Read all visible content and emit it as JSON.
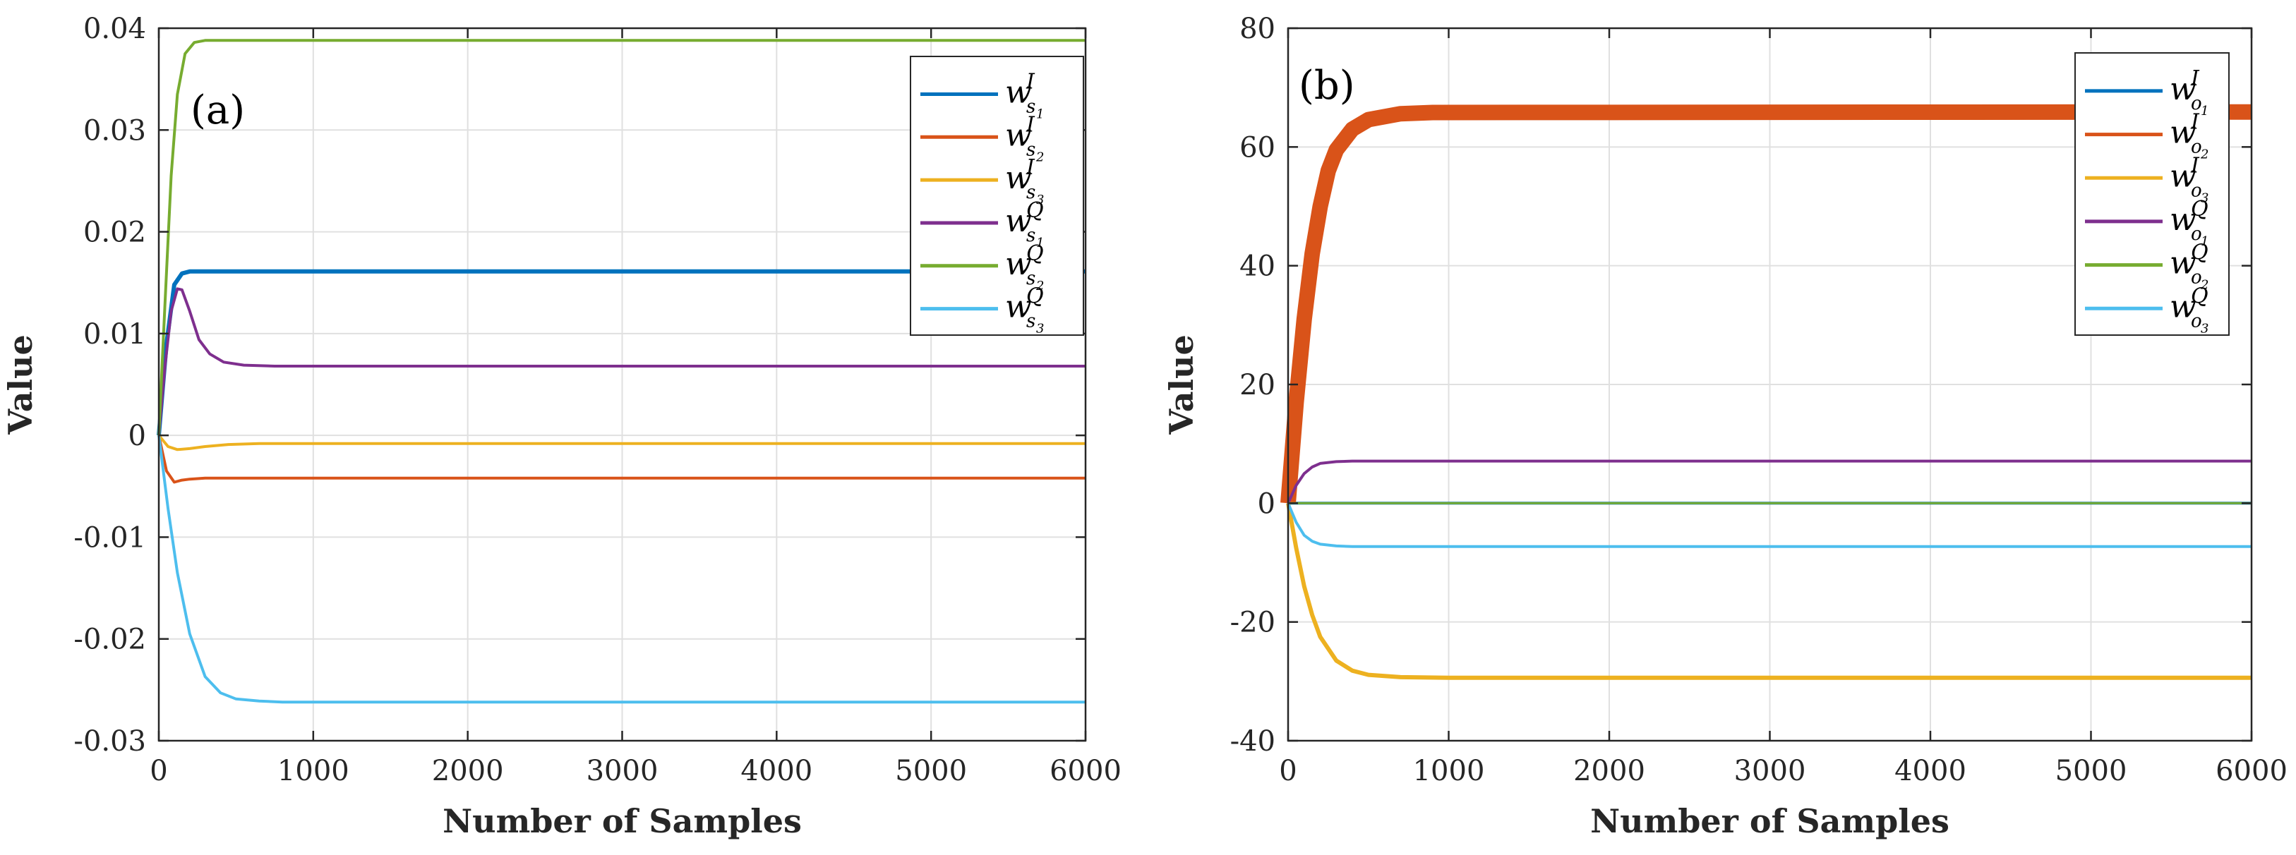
{
  "chart_data": [
    {
      "type": "line",
      "panel_label": "(a)",
      "xlabel": "Number of Samples",
      "ylabel": "Value",
      "xlim": [
        0,
        6000
      ],
      "ylim": [
        -0.03,
        0.04
      ],
      "xticks": [
        0,
        1000,
        2000,
        3000,
        4000,
        5000,
        6000
      ],
      "xtick_labels": [
        "0",
        "1000",
        "2000",
        "3000",
        "4000",
        "5000",
        "6000"
      ],
      "yticks": [
        -0.03,
        -0.02,
        -0.01,
        0,
        0.01,
        0.02,
        0.03,
        0.04
      ],
      "ytick_labels": [
        "-0.03",
        "-0.02",
        "-0.01",
        "0",
        "0.01",
        "0.02",
        "0.03",
        "0.04"
      ],
      "grid": true,
      "legend_position": "top-right",
      "series": [
        {
          "name": "w_{s1}^I",
          "w": "w",
          "sup": "I",
          "sub": "s",
          "subsub": "1",
          "color": "#0072BD",
          "width": 6,
          "x": [
            0,
            50,
            100,
            150,
            200,
            300,
            400,
            600,
            6000
          ],
          "values": [
            0,
            0.009,
            0.0148,
            0.0159,
            0.0161,
            0.0161,
            0.0161,
            0.0161,
            0.0161
          ]
        },
        {
          "name": "w_{s2}^I",
          "w": "w",
          "sup": "I",
          "sub": "s",
          "subsub": "2",
          "color": "#D95319",
          "width": 4,
          "x": [
            0,
            50,
            100,
            150,
            200,
            300,
            500,
            6000
          ],
          "values": [
            0,
            -0.0035,
            -0.0046,
            -0.0044,
            -0.0043,
            -0.0042,
            -0.0042,
            -0.0042
          ]
        },
        {
          "name": "w_{s3}^I",
          "w": "w",
          "sup": "I",
          "sub": "s",
          "subsub": "3",
          "color": "#EDB120",
          "width": 4,
          "x": [
            0,
            60,
            120,
            200,
            300,
            450,
            650,
            1000,
            6000
          ],
          "values": [
            0,
            -0.0011,
            -0.0014,
            -0.0013,
            -0.0011,
            -0.0009,
            -0.0008,
            -0.0008,
            -0.0008
          ]
        },
        {
          "name": "w_{s1}^Q",
          "w": "w",
          "sup": "Q",
          "sub": "s",
          "subsub": "1",
          "color": "#7E2F8E",
          "width": 4,
          "x": [
            0,
            40,
            80,
            120,
            150,
            200,
            260,
            330,
            420,
            550,
            750,
            1000,
            6000
          ],
          "values": [
            0,
            0.0068,
            0.0122,
            0.0144,
            0.0143,
            0.0122,
            0.0094,
            0.008,
            0.0072,
            0.0069,
            0.0068,
            0.0068,
            0.0068
          ]
        },
        {
          "name": "w_{s2}^Q",
          "w": "w",
          "sup": "Q",
          "sub": "s",
          "subsub": "2",
          "color": "#77AC30",
          "width": 4,
          "x": [
            0,
            40,
            80,
            120,
            170,
            230,
            300,
            600,
            6000
          ],
          "values": [
            0,
            0.013,
            0.0255,
            0.0335,
            0.0375,
            0.0386,
            0.0388,
            0.0388,
            0.0388
          ]
        },
        {
          "name": "w_{s3}^Q",
          "w": "w",
          "sup": "Q",
          "sub": "s",
          "subsub": "3",
          "color": "#4DBEEE",
          "width": 4,
          "x": [
            0,
            60,
            120,
            200,
            300,
            400,
            500,
            650,
            800,
            1000,
            6000
          ],
          "values": [
            0,
            -0.0072,
            -0.0135,
            -0.0195,
            -0.0237,
            -0.0253,
            -0.0259,
            -0.0261,
            -0.0262,
            -0.0262,
            -0.0262
          ]
        }
      ]
    },
    {
      "type": "line",
      "panel_label": "(b)",
      "xlabel": "Number of Samples",
      "ylabel": "Value",
      "xlim": [
        0,
        6000
      ],
      "ylim": [
        -40,
        80
      ],
      "xticks": [
        0,
        1000,
        2000,
        3000,
        4000,
        5000,
        6000
      ],
      "xtick_labels": [
        "0",
        "1000",
        "2000",
        "3000",
        "4000",
        "5000",
        "6000"
      ],
      "yticks": [
        -40,
        -20,
        0,
        20,
        40,
        60,
        80
      ],
      "ytick_labels": [
        "-40",
        "-20",
        "0",
        "20",
        "40",
        "60",
        "80"
      ],
      "grid": true,
      "legend_position": "top-right",
      "series": [
        {
          "name": "w_{o1}^I",
          "w": "w",
          "sup": "I",
          "sub": "o",
          "subsub": "1",
          "color": "#0072BD",
          "width": 4,
          "x": [
            0,
            6000
          ],
          "values": [
            0,
            0
          ]
        },
        {
          "name": "w_{o2}^I",
          "w": "w",
          "sup": "I",
          "sub": "o",
          "subsub": "2",
          "color": "#D95319",
          "width": 22,
          "x": [
            0,
            50,
            100,
            150,
            200,
            250,
            300,
            400,
            500,
            700,
            900,
            6000
          ],
          "values": [
            0,
            17,
            31,
            42,
            50,
            56,
            59.5,
            63,
            64.6,
            65.6,
            65.8,
            65.9
          ]
        },
        {
          "name": "w_{o3}^I",
          "w": "w",
          "sup": "I",
          "sub": "o",
          "subsub": "3",
          "color": "#EDB120",
          "width": 6,
          "x": [
            0,
            50,
            100,
            150,
            200,
            300,
            400,
            500,
            700,
            1000,
            6000
          ],
          "values": [
            0,
            -7.5,
            -14,
            -18.8,
            -22.5,
            -26.5,
            -28.2,
            -28.9,
            -29.3,
            -29.4,
            -29.4
          ]
        },
        {
          "name": "w_{o1}^Q",
          "w": "w",
          "sup": "Q",
          "sub": "o",
          "subsub": "1",
          "color": "#7E2F8E",
          "width": 4,
          "x": [
            0,
            50,
            100,
            150,
            200,
            300,
            400,
            600,
            6000
          ],
          "values": [
            0,
            3.0,
            5.0,
            6.1,
            6.7,
            7.0,
            7.1,
            7.1,
            7.1
          ]
        },
        {
          "name": "w_{o2}^Q",
          "w": "w",
          "sup": "Q",
          "sub": "o",
          "subsub": "2",
          "color": "#77AC30",
          "width": 3,
          "x": [
            0,
            6000
          ],
          "values": [
            0,
            0
          ]
        },
        {
          "name": "w_{o3}^Q",
          "w": "w",
          "sup": "Q",
          "sub": "o",
          "subsub": "3",
          "color": "#4DBEEE",
          "width": 4,
          "x": [
            0,
            50,
            100,
            150,
            200,
            300,
            400,
            600,
            6000
          ],
          "values": [
            0,
            -3.2,
            -5.4,
            -6.4,
            -6.9,
            -7.2,
            -7.3,
            -7.3,
            -7.3
          ]
        }
      ]
    }
  ]
}
